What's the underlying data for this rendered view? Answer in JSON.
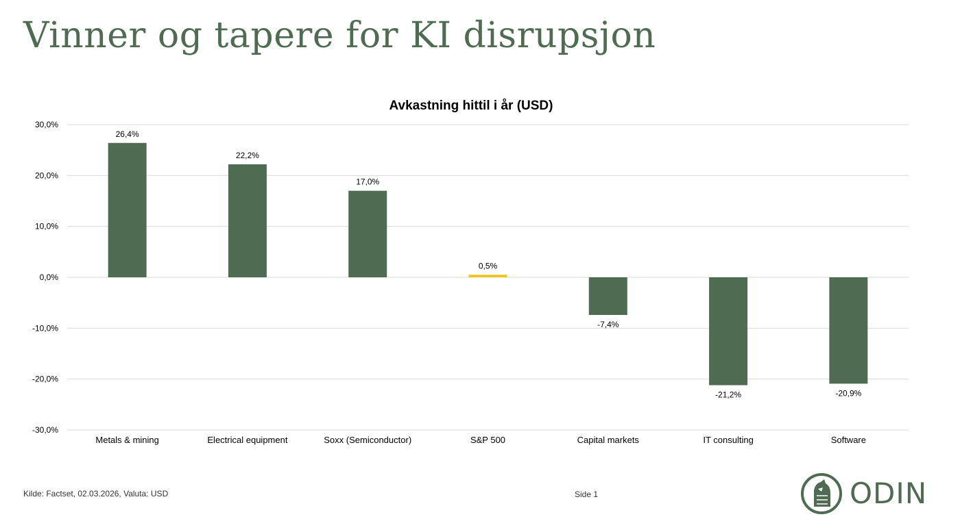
{
  "slide": {
    "title": "Vinner og tapere for KI disrupsjon",
    "source": "Kilde: Factset, 02.03.2026, Valuta: USD",
    "page": "Side 1",
    "logo_text": "ODIN"
  },
  "colors": {
    "primary": "#4f6b52",
    "highlight": "#f0c419",
    "grid": "#d9d9d9",
    "text": "#000000"
  },
  "chart_data": {
    "type": "bar",
    "title": "Avkastning hittil i år (USD)",
    "categories": [
      "Metals & mining",
      "Electrical equipment",
      "Soxx (Semiconductor)",
      "S&P 500",
      "Capital markets",
      "IT consulting",
      "Software"
    ],
    "values": [
      26.4,
      22.2,
      17.0,
      0.5,
      -7.4,
      -21.2,
      -20.9
    ],
    "value_labels": [
      "26,4%",
      "22,2%",
      "17,0%",
      "0,5%",
      "-7,4%",
      "-21,2%",
      "-20,9%"
    ],
    "highlight_category": "S&P 500",
    "ylim": [
      -30,
      30
    ],
    "yticks": [
      30,
      20,
      10,
      0,
      -10,
      -20,
      -30
    ],
    "ytick_labels": [
      "30,0%",
      "20,0%",
      "10,0%",
      "0,0%",
      "-10,0%",
      "-20,0%",
      "-30,0%"
    ],
    "xlabel": "",
    "ylabel": "",
    "grid": true
  }
}
